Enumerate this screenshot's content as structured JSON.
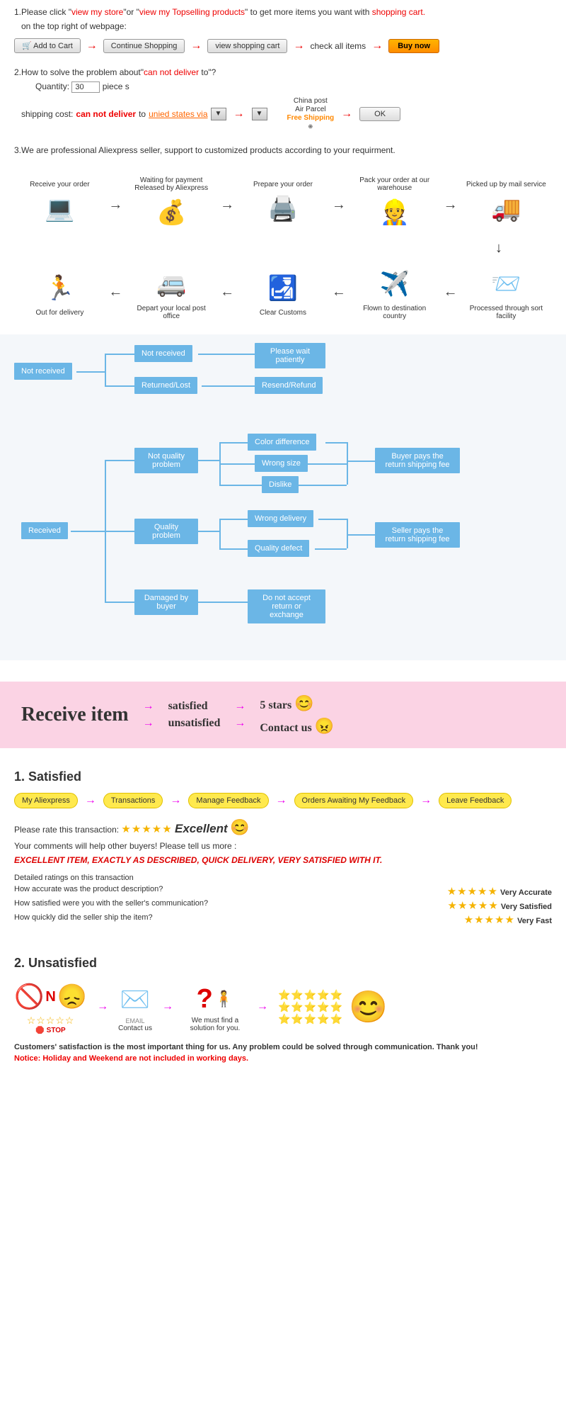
{
  "intro": {
    "line1_a": "1.Please click \"",
    "link1": "view my store",
    "line1_b": "\"or \"",
    "link2": "view my Topselling products",
    "line1_c": "\" to get more items you want with ",
    "link3": "shopping cart.",
    "line2": "on the top right of webpage:",
    "btn_add": "Add to Cart",
    "btn_continue": "Continue Shopping",
    "btn_viewcart": "view shopping cart",
    "txt_check": "check all items",
    "btn_buy": "Buy now"
  },
  "problem": {
    "line_a": "2.How to solve the problem about\"",
    "cannot": "can not deliver",
    "line_b": " to\"?",
    "qty_label": "Quantity:",
    "qty_value": "30",
    "qty_unit": "piece s",
    "ship_a": "shipping cost:",
    "ship_b": "can not deliver",
    "ship_c": " to ",
    "ship_link": "unied states via",
    "ship_carrier1": "China post",
    "ship_carrier2": "Air Parcel",
    "ship_free": "Free Shipping",
    "btn_ok": "OK"
  },
  "line3": "3.We are professional Aliexpress seller, support to customized products according to your requirment.",
  "order_flow": {
    "top": [
      {
        "label": "Receive your order",
        "icon": "💻"
      },
      {
        "label": "Waiting for payment Released by Aliexpress",
        "icon": "💰"
      },
      {
        "label": "Prepare your order",
        "icon": "🖨️"
      },
      {
        "label": "Pack your order at our warehouse",
        "icon": "👷"
      },
      {
        "label": "Picked up by mail service",
        "icon": "🚚"
      }
    ],
    "bottom": [
      {
        "label": "Out for delivery",
        "icon": "🏃"
      },
      {
        "label": "Depart your local post office",
        "icon": "🚐"
      },
      {
        "label": "Clear Customs",
        "icon": "🛃"
      },
      {
        "label": "Flown to destination country",
        "icon": "✈️"
      },
      {
        "label": "Processed through sort facility",
        "icon": "📨"
      }
    ]
  },
  "tree": {
    "not_received": "Not received",
    "nr_child1": "Not received",
    "nr_child1_leaf": "Please wait patiently",
    "nr_child2": "Returned/Lost",
    "nr_child2_leaf": "Resend/Refund",
    "received": "Received",
    "r_c1": "Not quality problem",
    "r_c1_l1": "Color difference",
    "r_c1_l2": "Wrong size",
    "r_c1_l3": "Dislike",
    "r_c1_out": "Buyer pays the return shipping fee",
    "r_c2": "Quality problem",
    "r_c2_l1": "Wrong delivery",
    "r_c2_l2": "Quality defect",
    "r_c2_out": "Seller pays the return shipping fee",
    "r_c3": "Damaged by buyer",
    "r_c3_leaf": "Do not accept return or exchange",
    "colors": {
      "box_bg": "#6bb6e6",
      "panel_bg": "#f4f7fa"
    }
  },
  "pink_banner": {
    "title": "Receive item",
    "opt1": "satisfied",
    "opt2": "unsatisfied",
    "res1": "5 stars",
    "res2": "Contact us",
    "emoji_happy": "😊",
    "emoji_angry": "😠"
  },
  "satisfied": {
    "heading": "1.  Satisfied",
    "pills": [
      "My Aliexpress",
      "Transactions",
      "Manage Feedback",
      "Orders Awaiting My Feedback",
      "Leave Feedback"
    ],
    "rate_label": "Please rate this transaction:",
    "excellent": "Excellent",
    "comments_line": "Your comments will help other buyers! Please tell us more :",
    "red_line": "EXCELLENT ITEM, EXACTLY AS DESCRIBED, QUICK DELIVERY, VERY SATISFIED WITH IT.",
    "detail_heading": "Detailed ratings on this transaction",
    "q1": "How accurate was the product description?",
    "q2": "How satisfied were you with the seller's communication?",
    "q3": "How quickly did the seller ship the item?",
    "a1": "Very Accurate",
    "a2": "Very Satisfied",
    "a3": "Very Fast"
  },
  "unsatisfied": {
    "heading": "2.  Unsatisfied",
    "no": "N",
    "stop": "STOP",
    "contact": "Contact us",
    "email": "EMAIL",
    "find": "We must find a solution for you.",
    "footer1": "Customers' satisfaction is the most important thing for us. Any problem could be solved through communication. Thank you!",
    "footer2": "Notice: Holiday and Weekend are not included in working days."
  }
}
